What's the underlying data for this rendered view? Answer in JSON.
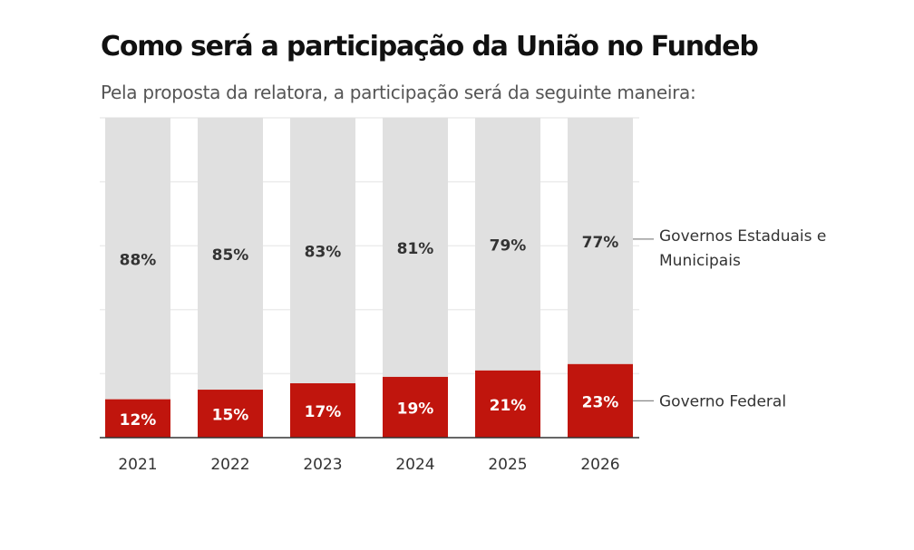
{
  "chart_data": {
    "type": "bar",
    "stacked": true,
    "title": "Como será a participação da União no Fundeb",
    "subtitle": "Pela proposta da relatora, a participação será da seguinte maneira:",
    "categories": [
      "2021",
      "2022",
      "2023",
      "2024",
      "2025",
      "2026"
    ],
    "series": [
      {
        "name": "Governo Federal",
        "color": "#c0150d",
        "values": [
          12,
          15,
          17,
          19,
          21,
          23
        ],
        "labels": [
          "12%",
          "15%",
          "17%",
          "19%",
          "21%",
          "23%"
        ]
      },
      {
        "name": "Governos Estaduais e Municipais",
        "name_lines": [
          "Governos Estaduais e",
          "Municipais"
        ],
        "color": "#e0e0e0",
        "values": [
          88,
          85,
          83,
          81,
          79,
          77
        ],
        "labels": [
          "88%",
          "85%",
          "83%",
          "81%",
          "79%",
          "77%"
        ]
      }
    ],
    "xlabel": "",
    "ylabel": "",
    "ylim": [
      0,
      100
    ],
    "yticks": [
      0,
      20,
      40,
      60,
      80,
      100
    ],
    "grid": true,
    "legend": "right"
  }
}
